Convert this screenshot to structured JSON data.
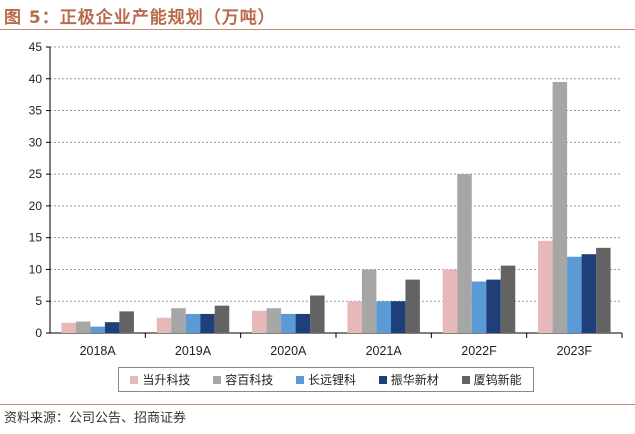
{
  "title": "图 5：正极企业产能规划（万吨）",
  "source": "资料来源：公司公告、招商证券",
  "chart_data": {
    "type": "bar",
    "title": "图 5：正极企业产能规划（万吨）",
    "categories": [
      "2018A",
      "2019A",
      "2020A",
      "2021A",
      "2022F",
      "2023F"
    ],
    "ylim": [
      0,
      45
    ],
    "yticks": [
      0,
      5,
      10,
      15,
      20,
      25,
      30,
      35,
      40,
      45
    ],
    "grid": true,
    "legend_position": "bottom",
    "series": [
      {
        "name": "当升科技",
        "color": "#e6b8b7",
        "values": [
          1.6,
          2.4,
          3.5,
          5,
          10,
          14.5
        ]
      },
      {
        "name": "容百科技",
        "color": "#a6a6a6",
        "values": [
          1.8,
          3.9,
          3.9,
          10,
          25,
          39.5
        ]
      },
      {
        "name": "长远锂科",
        "color": "#5b9bd5",
        "values": [
          1.0,
          3.0,
          3.0,
          5,
          8.1,
          12
        ]
      },
      {
        "name": "振华新材",
        "color": "#1f3f7a",
        "values": [
          1.7,
          3.0,
          3.0,
          5,
          8.4,
          12.4
        ]
      },
      {
        "name": "厦钨新能",
        "color": "#636363",
        "values": [
          3.4,
          4.3,
          5.9,
          8.4,
          10.6,
          13.4
        ]
      }
    ]
  }
}
